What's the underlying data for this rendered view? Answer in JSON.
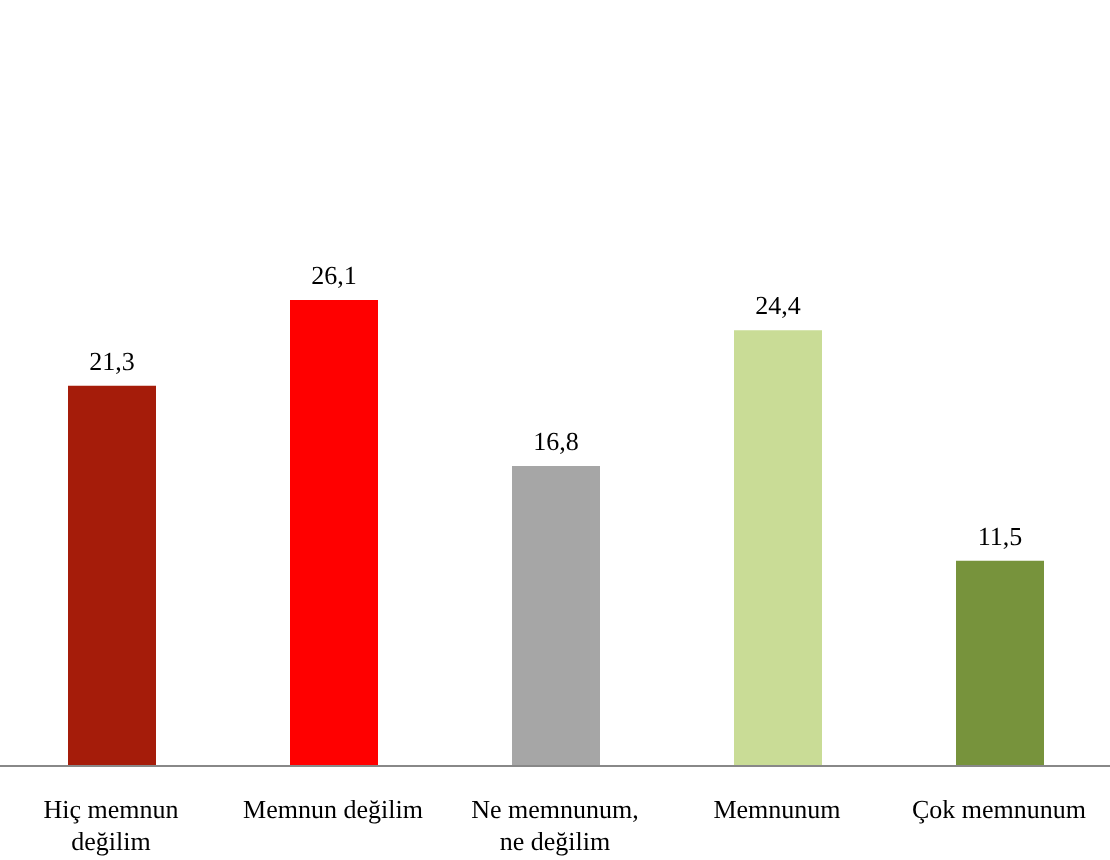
{
  "chart_data": {
    "type": "bar",
    "categories": [
      "Hiç memnun değilim",
      "Memnun değilim",
      "Ne memnunum, ne değilim",
      "Memnunum",
      "Çok memnunum"
    ],
    "values": [
      21.3,
      26.1,
      16.8,
      24.4,
      11.5
    ],
    "colors": [
      "#a51c0a",
      "#ff0000",
      "#a6a6a6",
      "#c9dc96",
      "#77933c"
    ],
    "value_labels": [
      "21,3",
      "26,1",
      "16,8",
      "24,4",
      "11,5"
    ],
    "grid": false,
    "legend": false
  }
}
